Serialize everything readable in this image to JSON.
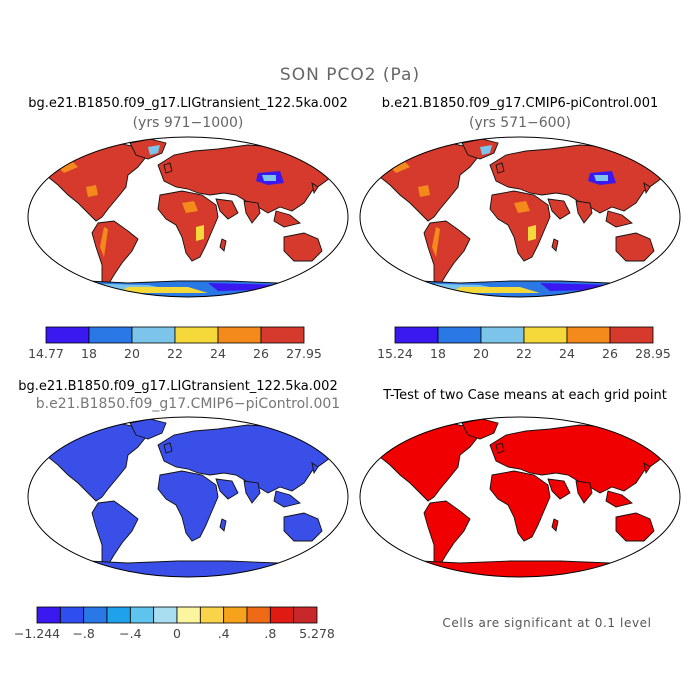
{
  "title": "SON PCO2 (Pa)",
  "panels": [
    {
      "id": "p1",
      "case": "bg.e21.B1850.f09_g17.LIGtransient_122.5ka.002",
      "subtitle": "(yrs 971−1000)"
    },
    {
      "id": "p2",
      "case": "b.e21.B1850.f09_g17.CMIP6-piControl.001",
      "subtitle": "(yrs 571−600)"
    },
    {
      "id": "p3",
      "case": "bg.e21.B1850.f09_g17.LIGtransient_122.5ka.002",
      "subtitle": "b.e21.B1850.f09_g17.CMIP6−piControl.001"
    },
    {
      "id": "p4",
      "case": "T-Test of two Case means at each grid point",
      "subtitle": ""
    }
  ],
  "colorbars": [
    {
      "id": "cb1",
      "labels": [
        "14.77",
        "18",
        "20",
        "22",
        "24",
        "26",
        "27.95"
      ],
      "colors": [
        "#3a18f0",
        "#2a78e6",
        "#7cc4ea",
        "#f5d83a",
        "#f58a1c",
        "#d63a2c"
      ]
    },
    {
      "id": "cb2",
      "labels": [
        "15.24",
        "18",
        "20",
        "22",
        "24",
        "26",
        "28.95"
      ],
      "colors": [
        "#3a18f0",
        "#2a78e6",
        "#7cc4ea",
        "#f5d83a",
        "#f58a1c",
        "#d63a2c"
      ]
    },
    {
      "id": "cb3",
      "labels": [
        "−1.244",
        "−.8",
        "−.4",
        "0",
        ".4",
        ".8",
        "5.278"
      ],
      "colors": [
        "#3a18f0",
        "#2f4ef0",
        "#2a78e6",
        "#1fa2ea",
        "#5ec4ee",
        "#a8def0",
        "#fcf5a0",
        "#fad34a",
        "#f6a21c",
        "#ee6a14",
        "#e01b14",
        "#c8282a"
      ]
    }
  ],
  "significance_note": "Cells are significant at 0.1 level",
  "map_fills": {
    "p1": {
      "ocean": "#ffffff",
      "land": "#d63a2c",
      "antarctica": "#2a78e6"
    },
    "p2": {
      "ocean": "#ffffff",
      "land": "#d63a2c",
      "antarctica": "#2a78e6"
    },
    "p3": {
      "ocean": "#ffffff",
      "land": "#3a4fe8",
      "antarctica": "#3a4fe8"
    },
    "p4": {
      "ocean": "#ffffff",
      "land": "#f00000",
      "antarctica": "#f00000"
    }
  }
}
